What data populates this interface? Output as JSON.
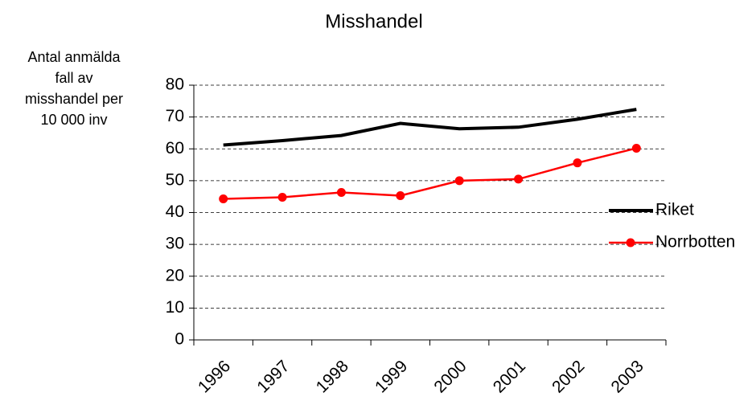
{
  "chart_data": {
    "type": "line",
    "title": "Misshandel",
    "y_label": [
      "Antal anmälda",
      "fall av",
      "misshandel per",
      "10 000 inv"
    ],
    "categories": [
      "1996",
      "1997",
      "1998",
      "1999",
      "2000",
      "2001",
      "2002",
      "2003"
    ],
    "series": [
      {
        "name": "Riket",
        "color": "#000000",
        "markers": false,
        "values": [
          61.2,
          62.6,
          64.2,
          68,
          66.3,
          66.8,
          69.3,
          72.4
        ]
      },
      {
        "name": "Norrbotten",
        "color": "#ff0000",
        "markers": true,
        "values": [
          44.3,
          44.8,
          46.3,
          45.3,
          50,
          50.5,
          55.6,
          60.2
        ]
      }
    ],
    "ylim": [
      0,
      80
    ],
    "yticks": [
      0,
      10,
      20,
      30,
      40,
      50,
      60,
      70,
      80
    ],
    "grid": true,
    "legend": "right"
  }
}
